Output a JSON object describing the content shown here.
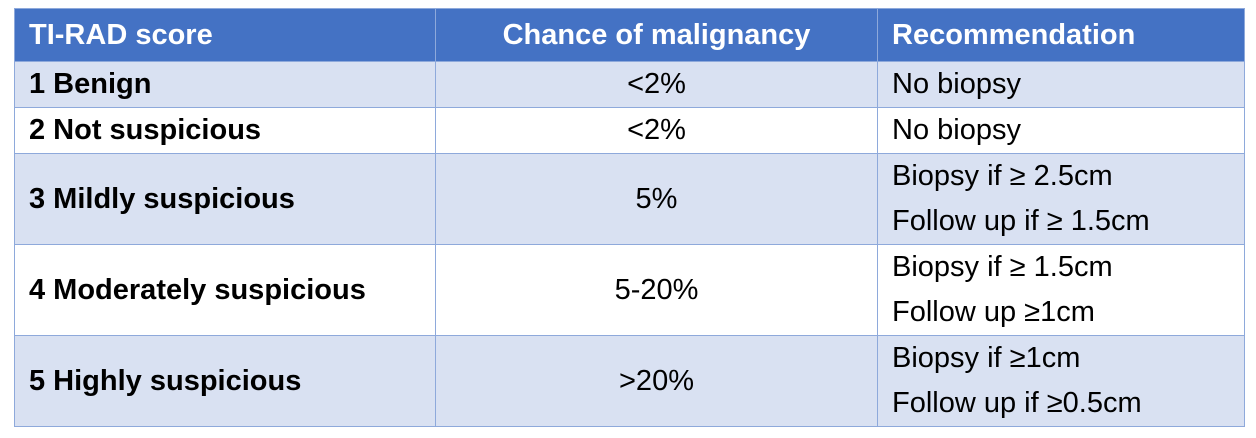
{
  "table": {
    "header": [
      "TI-RAD score",
      "Chance of malignancy",
      "Recommendation"
    ],
    "rows": [
      [
        "1 Benign",
        "<2%",
        [
          "No biopsy"
        ]
      ],
      [
        "2 Not suspicious",
        "<2%",
        [
          "No biopsy"
        ]
      ],
      [
        "3 Mildly suspicious",
        "5%",
        [
          "Biopsy if ≥ 2.5cm",
          "Follow up if ≥ 1.5cm"
        ]
      ],
      [
        "4 Moderately suspicious",
        "5-20%",
        [
          "Biopsy if ≥ 1.5cm",
          "Follow up ≥1cm"
        ]
      ],
      [
        "5 Highly suspicious",
        ">20%",
        [
          "Biopsy if ≥1cm",
          "Follow up if ≥0.5cm"
        ]
      ]
    ]
  }
}
